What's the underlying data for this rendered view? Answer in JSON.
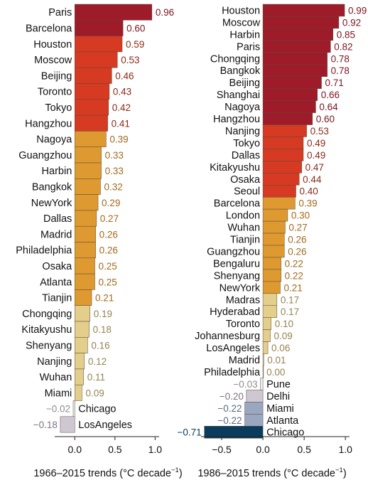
{
  "chart_data": [
    {
      "type": "bar",
      "orientation": "horizontal",
      "xlabel": "1966–2015 trends (°C decade⁻¹)",
      "xlabel_parts": [
        "1966–2015 trends (°C decade",
        "−1",
        ")"
      ],
      "xlim": [
        -0.25,
        1.05
      ],
      "xticks": [
        0.0,
        0.5,
        1.0
      ],
      "xtick_labels": [
        "0.0",
        "0.5",
        "1.0"
      ],
      "categories": [
        "Paris",
        "Barcelona",
        "Houston",
        "Moscow",
        "Beijing",
        "Toronto",
        "Tokyo",
        "Hangzhou",
        "Nagoya",
        "Guangzhou",
        "Harbin",
        "Bangkok",
        "NewYork",
        "Dallas",
        "Madrid",
        "Philadelphia",
        "Osaka",
        "Atlanta",
        "Tianjin",
        "Chongqing",
        "Kitakyushu",
        "Shenyang",
        "Nanjing",
        "Wuhan",
        "Miami",
        "Chicago",
        "LosAngeles"
      ],
      "values": [
        0.96,
        0.6,
        0.59,
        0.53,
        0.46,
        0.43,
        0.42,
        0.41,
        0.39,
        0.33,
        0.33,
        0.32,
        0.29,
        0.27,
        0.26,
        0.26,
        0.25,
        0.25,
        0.21,
        0.19,
        0.18,
        0.16,
        0.12,
        0.11,
        0.09,
        -0.02,
        -0.18
      ],
      "value_labels": [
        "0.96",
        "0.60",
        "0.59",
        "0.53",
        "0.46",
        "0.43",
        "0.42",
        "0.41",
        "0.39",
        "0.33",
        "0.33",
        "0.32",
        "0.29",
        "0.27",
        "0.26",
        "0.26",
        "0.25",
        "0.25",
        "0.21",
        "0.19",
        "0.18",
        "0.16",
        "0.12",
        "0.11",
        "0.09",
        "−0.02",
        "−0.18"
      ]
    },
    {
      "type": "bar",
      "orientation": "horizontal",
      "xlabel": "1986–2015 trends (°C decade⁻¹)",
      "xlabel_parts": [
        "1986–2015 trends (°C decade",
        "−1",
        ")"
      ],
      "xlim": [
        -0.75,
        1.05
      ],
      "xticks": [
        -0.5,
        0.0,
        0.5,
        1.0
      ],
      "xtick_labels": [
        "−0.5",
        "0.0",
        "0.5",
        "1.0"
      ],
      "categories": [
        "Houston",
        "Moscow",
        "Harbin",
        "Paris",
        "Chongqing",
        "Bangkok",
        "Beijing",
        "Shanghai",
        "Nagoya",
        "Hangzhou",
        "Nanjing",
        "Tokyo",
        "Dallas",
        "Kitakyushu",
        "Osaka",
        "Seoul",
        "Barcelona",
        "London",
        "Wuhan",
        "Tianjin",
        "Guangzhou",
        "Bengaluru",
        "Shenyang",
        "NewYork",
        "Madras",
        "Hyderabad",
        "Toronto",
        "Johannesburg",
        "LosAngeles",
        "Madrid",
        "Philadelphia",
        "Pune",
        "Delhi",
        "Miami",
        "Atlanta",
        "Chicago"
      ],
      "values": [
        0.99,
        0.92,
        0.85,
        0.82,
        0.78,
        0.78,
        0.71,
        0.66,
        0.64,
        0.6,
        0.53,
        0.49,
        0.49,
        0.47,
        0.44,
        0.4,
        0.39,
        0.3,
        0.27,
        0.26,
        0.26,
        0.22,
        0.22,
        0.21,
        0.17,
        0.17,
        0.1,
        0.09,
        0.06,
        0.01,
        0.0,
        -0.03,
        -0.2,
        -0.22,
        -0.22,
        -0.71
      ],
      "value_labels": [
        "0.99",
        "0.92",
        "0.85",
        "0.82",
        "0.78",
        "0.78",
        "0.71",
        "0.66",
        "0.64",
        "0.60",
        "0.53",
        "0.49",
        "0.49",
        "0.47",
        "0.44",
        "0.40",
        "0.39",
        "0.30",
        "0.27",
        "0.26",
        "0.26",
        "0.22",
        "0.22",
        "0.21",
        "0.17",
        "0.17",
        "0.10",
        "0.09",
        "0.06",
        "0.01",
        "0.00",
        "−0.03",
        "−0.20",
        "−0.22",
        "−0.22",
        "−0.71"
      ]
    }
  ],
  "color_scale": [
    {
      "min": 0.6,
      "fill": "#9e1b2a",
      "text": "#7a1420"
    },
    {
      "min": 0.4,
      "fill": "#d63a22",
      "text": "#8a2a18"
    },
    {
      "min": 0.2,
      "fill": "#de9a30",
      "text": "#a06a1c"
    },
    {
      "min": 0.0,
      "fill": "#e3ce8c",
      "text": "#958350"
    },
    {
      "min": -0.1,
      "fill": "#eeeeee",
      "text": "#8c8c8c"
    },
    {
      "min": -0.21,
      "fill": "#cfc8d2",
      "text": "#7c7480"
    },
    {
      "min": -0.5,
      "fill": "#9aa7c0",
      "text": "#5a6a86"
    },
    {
      "min": -9.0,
      "fill": "#0b3c5d",
      "text": "#0b3c5d"
    }
  ]
}
